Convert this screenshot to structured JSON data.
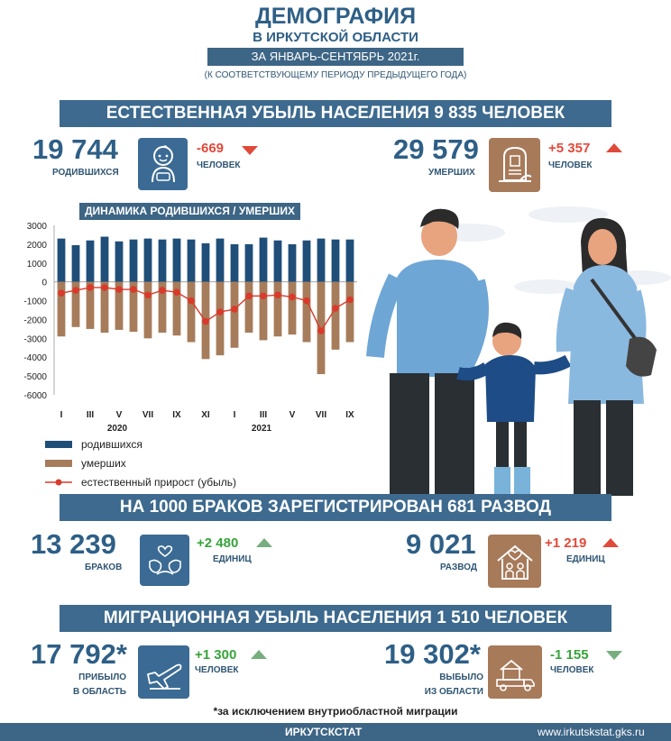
{
  "header": {
    "title": "ДЕМОГРАФИЯ",
    "subtitle": "В ИРКУТСКОЙ ОБЛАСТИ",
    "period": "ЗА ЯНВАРЬ-СЕНТЯБРЬ 2021г.",
    "note": "(К СООТВЕТСТВУЮЩЕМУ ПЕРИОДУ ПРЕДЫДУЩЕГО ГОДА)"
  },
  "section1": {
    "banner": "ЕСТЕСТВЕННАЯ УБЫЛЬ НАСЕЛЕНИЯ  9 835 ЧЕЛОВЕК",
    "births": {
      "value": "19 744",
      "label": "РОДИВШИХСЯ",
      "delta": "-669",
      "unit": "ЧЕЛОВЕК",
      "icon": "baby-icon"
    },
    "deaths": {
      "value": "29 579",
      "label": "УМЕРШИХ",
      "delta": "+5 357",
      "unit": "ЧЕЛОВЕК",
      "icon": "tombstone-icon"
    }
  },
  "section2": {
    "banner": "НА 1000 БРАКОВ ЗАРЕГИСТРИРОВАН 681 РАЗВОД",
    "marriages": {
      "value": "13 239",
      "label": "БРАКОВ",
      "delta": "+2 480",
      "unit": "ЕДИНИЦ",
      "icon": "doves-icon"
    },
    "divorces": {
      "value": "9 021",
      "label": "РАЗВОД",
      "delta": "+1 219",
      "unit": "ЕДИНИЦ",
      "icon": "broken-home-icon"
    }
  },
  "section3": {
    "banner": "МИГРАЦИОННАЯ УБЫЛЬ НАСЕЛЕНИЯ 1 510 ЧЕЛОВЕК",
    "arrived": {
      "value": "17 792*",
      "label1": "ПРИБЫЛО",
      "label2": "В ОБЛАСТЬ",
      "delta": "+1 300",
      "unit": "ЧЕЛОВЕК",
      "icon": "airplane-icon"
    },
    "departed": {
      "value": "19 302*",
      "label1": "ВЫБЫЛО",
      "label2": "ИЗ ОБЛАСТИ",
      "delta": "-1 155",
      "unit": "ЧЕЛОВЕК",
      "icon": "moving-truck-icon"
    },
    "footnote": "*за исключением  внутриобластной миграции"
  },
  "footer": {
    "org": "ИРКУТСКСТАТ",
    "url": "www.irkutskstat.gks.ru"
  },
  "colors": {
    "primary": "#3d6a8e",
    "births_bar": "#1f4e79",
    "deaths_bar": "#a67c5b",
    "natural_line": "#d93a2b",
    "negative": "#e04a3a",
    "positive": "#37a43a"
  },
  "chart_data": {
    "type": "bar",
    "title": "ДИНАМИКА РОДИВШИХСЯ / УМЕРШИХ",
    "x_tick_labels": [
      "I",
      "III",
      "V",
      "VII",
      "IX",
      "XI",
      "I",
      "III",
      "V",
      "VII",
      "IX"
    ],
    "year_labels": [
      "2020",
      "2021"
    ],
    "ylim": [
      -6000,
      3000
    ],
    "y_ticks": [
      3000,
      2000,
      1000,
      0,
      -1000,
      -2000,
      -3000,
      -4000,
      -5000,
      -6000
    ],
    "categories": [
      "2020-I",
      "2020-II",
      "2020-III",
      "2020-IV",
      "2020-V",
      "2020-VI",
      "2020-VII",
      "2020-VIII",
      "2020-IX",
      "2020-X",
      "2020-XI",
      "2020-XII",
      "2021-I",
      "2021-II",
      "2021-III",
      "2021-IV",
      "2021-V",
      "2021-VI",
      "2021-VII",
      "2021-VIII",
      "2021-IX"
    ],
    "series": [
      {
        "name": "родившихся",
        "kind": "bar",
        "values": [
          2300,
          1950,
          2200,
          2400,
          2150,
          2250,
          2300,
          2250,
          2300,
          2250,
          2050,
          2300,
          2000,
          2000,
          2350,
          2200,
          2000,
          2200,
          2300,
          2250,
          2250
        ]
      },
      {
        "name": "умерших",
        "kind": "bar",
        "values": [
          -2900,
          -2400,
          -2500,
          -2700,
          -2550,
          -2650,
          -3000,
          -2700,
          -2850,
          -3200,
          -4100,
          -3900,
          -3500,
          -2700,
          -3100,
          -2900,
          -2800,
          -3200,
          -4900,
          -3600,
          -3200
        ]
      },
      {
        "name": "естественный прирост  (убыль)",
        "kind": "line",
        "values": [
          -600,
          -450,
          -300,
          -300,
          -400,
          -400,
          -700,
          -450,
          -550,
          -1000,
          -2100,
          -1600,
          -1450,
          -750,
          -750,
          -700,
          -800,
          -1000,
          -2600,
          -1400,
          -950
        ]
      }
    ]
  }
}
